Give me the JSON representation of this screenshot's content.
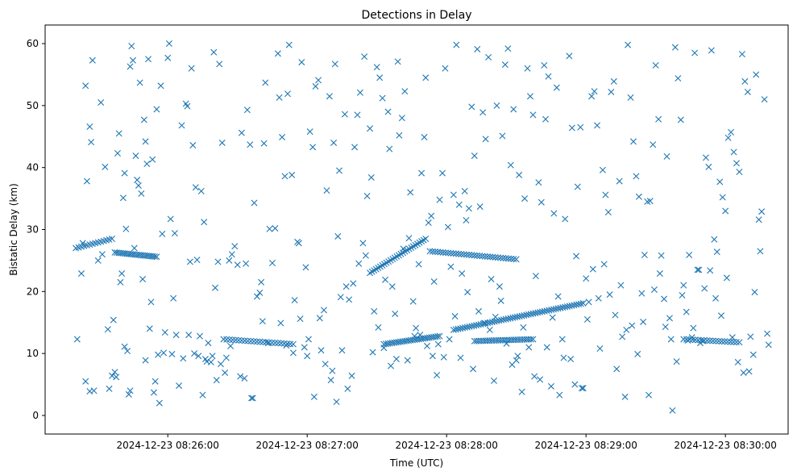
{
  "chart_data": {
    "type": "scatter",
    "title": "Detections in Delay",
    "xlabel": "Time (UTC)",
    "ylabel": "Bistatic Delay (km)",
    "x_unit": "minutes since 2024-12-23 08:25:00",
    "xlim": [
      0.12,
      5.45
    ],
    "ylim": [
      -3.0,
      63.0
    ],
    "grid": false,
    "marker": "x",
    "color": "#1f77b4",
    "xticks": [
      {
        "value": 1,
        "label": "2024-12-23 08:26:00"
      },
      {
        "value": 2,
        "label": "2024-12-23 08:27:00"
      },
      {
        "value": 3,
        "label": "2024-12-23 08:28:00"
      },
      {
        "value": 4,
        "label": "2024-12-23 08:29:00"
      },
      {
        "value": 5,
        "label": "2024-12-23 08:30:00"
      }
    ],
    "yticks": [
      {
        "value": 0,
        "label": "0"
      },
      {
        "value": 10,
        "label": "10"
      },
      {
        "value": 20,
        "label": "20"
      },
      {
        "value": 30,
        "label": "30"
      },
      {
        "value": 40,
        "label": "40"
      },
      {
        "value": 50,
        "label": "50"
      },
      {
        "value": 60,
        "label": "60"
      }
    ],
    "tracks": [
      {
        "name": "track-a",
        "x0": 0.34,
        "y0": 27.0,
        "x1": 0.6,
        "y1": 28.5,
        "n": 14
      },
      {
        "name": "track-b",
        "x0": 0.62,
        "y0": 26.3,
        "x1": 0.92,
        "y1": 25.6,
        "n": 22
      },
      {
        "name": "track-c",
        "x0": 1.4,
        "y0": 12.3,
        "x1": 1.9,
        "y1": 11.5,
        "n": 24
      },
      {
        "name": "track-d",
        "x0": 2.45,
        "y0": 23.0,
        "x1": 2.85,
        "y1": 28.5,
        "n": 28
      },
      {
        "name": "track-e",
        "x0": 2.88,
        "y0": 26.5,
        "x1": 3.5,
        "y1": 25.2,
        "n": 34
      },
      {
        "name": "track-f",
        "x0": 2.55,
        "y0": 11.5,
        "x1": 2.95,
        "y1": 12.8,
        "n": 28
      },
      {
        "name": "track-g",
        "x0": 3.05,
        "y0": 13.8,
        "x1": 3.98,
        "y1": 18.1,
        "n": 58
      },
      {
        "name": "track-h",
        "x0": 3.2,
        "y0": 12.0,
        "x1": 3.62,
        "y1": 12.3,
        "n": 28
      },
      {
        "name": "track-i",
        "x0": 4.7,
        "y0": 12.3,
        "x1": 5.1,
        "y1": 11.8,
        "n": 20
      }
    ],
    "points": [
      [
        0.35,
        12.3
      ],
      [
        0.38,
        22.9
      ],
      [
        0.41,
        5.5
      ],
      [
        0.42,
        37.8
      ],
      [
        0.41,
        53.2
      ],
      [
        0.44,
        46.6
      ],
      [
        0.45,
        44.1
      ],
      [
        0.46,
        57.3
      ],
      [
        0.44,
        3.9
      ],
      [
        0.5,
        25.0
      ],
      [
        0.52,
        50.5
      ],
      [
        0.55,
        40.1
      ],
      [
        0.58,
        4.3
      ],
      [
        0.6,
        6.4
      ],
      [
        0.62,
        7.0
      ],
      [
        0.63,
        6.2
      ],
      [
        0.64,
        42.3
      ],
      [
        0.65,
        45.5
      ],
      [
        0.66,
        21.5
      ],
      [
        0.67,
        22.9
      ],
      [
        0.68,
        35.1
      ],
      [
        0.69,
        39.1
      ],
      [
        0.7,
        30.1
      ],
      [
        0.71,
        10.4
      ],
      [
        0.72,
        3.4
      ],
      [
        0.73,
        4.0
      ],
      [
        0.73,
        56.3
      ],
      [
        0.74,
        59.6
      ],
      [
        0.75,
        57.3
      ],
      [
        0.77,
        41.9
      ],
      [
        0.78,
        38.0
      ],
      [
        0.79,
        37.1
      ],
      [
        0.8,
        53.7
      ],
      [
        0.81,
        35.8
      ],
      [
        0.82,
        22.0
      ],
      [
        0.83,
        47.7
      ],
      [
        0.84,
        44.2
      ],
      [
        0.85,
        40.6
      ],
      [
        0.86,
        57.5
      ],
      [
        0.87,
        14.0
      ],
      [
        0.88,
        18.3
      ],
      [
        0.89,
        41.3
      ],
      [
        0.9,
        3.7
      ],
      [
        0.91,
        5.5
      ],
      [
        0.92,
        49.4
      ],
      [
        0.93,
        9.8
      ],
      [
        0.94,
        2.0
      ],
      [
        0.95,
        53.2
      ],
      [
        0.96,
        29.3
      ],
      [
        0.98,
        13.4
      ],
      [
        1.0,
        57.7
      ],
      [
        1.01,
        60.0
      ],
      [
        1.02,
        31.7
      ],
      [
        1.04,
        18.9
      ],
      [
        1.05,
        29.4
      ],
      [
        1.06,
        13.0
      ],
      [
        1.08,
        4.8
      ],
      [
        1.1,
        46.8
      ],
      [
        1.11,
        9.2
      ],
      [
        1.13,
        50.3
      ],
      [
        1.14,
        49.9
      ],
      [
        1.15,
        13.0
      ],
      [
        1.17,
        56.0
      ],
      [
        1.18,
        43.6
      ],
      [
        1.2,
        36.8
      ],
      [
        1.21,
        25.1
      ],
      [
        1.22,
        9.6
      ],
      [
        1.24,
        36.2
      ],
      [
        1.25,
        3.3
      ],
      [
        1.26,
        31.2
      ],
      [
        1.28,
        8.7
      ],
      [
        1.29,
        11.7
      ],
      [
        1.31,
        8.6
      ],
      [
        1.33,
        58.6
      ],
      [
        1.34,
        20.6
      ],
      [
        1.36,
        24.8
      ],
      [
        1.37,
        56.7
      ],
      [
        1.39,
        44.0
      ],
      [
        1.41,
        6.9
      ],
      [
        1.42,
        9.3
      ],
      [
        1.44,
        25.0
      ],
      [
        1.46,
        26.0
      ],
      [
        1.48,
        27.3
      ],
      [
        1.5,
        24.3
      ],
      [
        1.53,
        45.6
      ],
      [
        1.55,
        6.0
      ],
      [
        1.57,
        49.3
      ],
      [
        1.59,
        43.7
      ],
      [
        1.61,
        2.8
      ],
      [
        1.62,
        34.3
      ],
      [
        1.64,
        19.2
      ],
      [
        1.66,
        19.8
      ],
      [
        1.67,
        21.5
      ],
      [
        1.69,
        43.9
      ],
      [
        1.7,
        53.7
      ],
      [
        1.73,
        30.1
      ],
      [
        1.75,
        24.6
      ],
      [
        1.79,
        58.4
      ],
      [
        1.8,
        51.3
      ],
      [
        1.82,
        44.9
      ],
      [
        1.84,
        38.6
      ],
      [
        1.86,
        51.9
      ],
      [
        1.87,
        59.8
      ],
      [
        1.89,
        38.8
      ],
      [
        1.91,
        18.6
      ],
      [
        1.93,
        28.0
      ],
      [
        1.94,
        27.8
      ],
      [
        1.96,
        57.0
      ],
      [
        1.98,
        11.0
      ],
      [
        1.99,
        23.9
      ],
      [
        2.01,
        12.3
      ],
      [
        2.02,
        45.8
      ],
      [
        2.04,
        43.3
      ],
      [
        2.06,
        53.1
      ],
      [
        2.08,
        54.1
      ],
      [
        2.1,
        10.5
      ],
      [
        2.12,
        17.0
      ],
      [
        2.14,
        36.3
      ],
      [
        2.16,
        51.5
      ],
      [
        2.18,
        7.2
      ],
      [
        2.19,
        44.0
      ],
      [
        2.2,
        56.7
      ],
      [
        2.22,
        28.9
      ],
      [
        2.23,
        39.5
      ],
      [
        2.25,
        10.5
      ],
      [
        2.27,
        48.6
      ],
      [
        2.28,
        20.8
      ],
      [
        2.3,
        18.7
      ],
      [
        2.32,
        6.4
      ],
      [
        2.34,
        43.3
      ],
      [
        2.36,
        48.5
      ],
      [
        2.38,
        52.1
      ],
      [
        2.4,
        27.8
      ],
      [
        2.41,
        57.9
      ],
      [
        2.43,
        35.4
      ],
      [
        2.45,
        46.3
      ],
      [
        2.46,
        38.4
      ],
      [
        2.48,
        16.8
      ],
      [
        2.5,
        56.2
      ],
      [
        2.52,
        54.5
      ],
      [
        2.54,
        51.2
      ],
      [
        2.56,
        21.9
      ],
      [
        2.58,
        49.0
      ],
      [
        2.59,
        43.0
      ],
      [
        2.61,
        20.8
      ],
      [
        2.63,
        16.4
      ],
      [
        2.65,
        57.1
      ],
      [
        2.66,
        45.2
      ],
      [
        2.68,
        48.0
      ],
      [
        2.7,
        52.3
      ],
      [
        2.72,
        8.9
      ],
      [
        2.74,
        36.0
      ],
      [
        2.76,
        18.4
      ],
      [
        2.78,
        14.1
      ],
      [
        2.8,
        24.4
      ],
      [
        2.82,
        39.1
      ],
      [
        2.84,
        44.9
      ],
      [
        2.85,
        54.5
      ],
      [
        2.87,
        31.1
      ],
      [
        2.89,
        32.2
      ],
      [
        2.91,
        21.6
      ],
      [
        2.93,
        6.5
      ],
      [
        2.95,
        34.8
      ],
      [
        2.97,
        39.1
      ],
      [
        2.99,
        56.0
      ],
      [
        3.01,
        30.4
      ],
      [
        3.03,
        24.0
      ],
      [
        3.05,
        35.6
      ],
      [
        3.07,
        59.8
      ],
      [
        3.09,
        34.0
      ],
      [
        3.11,
        22.9
      ],
      [
        3.13,
        36.2
      ],
      [
        3.14,
        31.5
      ],
      [
        3.16,
        33.4
      ],
      [
        3.18,
        49.8
      ],
      [
        3.2,
        41.9
      ],
      [
        3.22,
        59.1
      ],
      [
        3.24,
        33.7
      ],
      [
        3.26,
        48.9
      ],
      [
        3.28,
        44.6
      ],
      [
        3.3,
        57.8
      ],
      [
        3.32,
        22.0
      ],
      [
        3.34,
        5.6
      ],
      [
        3.36,
        50.0
      ],
      [
        3.38,
        20.8
      ],
      [
        3.4,
        45.1
      ],
      [
        3.42,
        56.6
      ],
      [
        3.44,
        59.2
      ],
      [
        3.46,
        40.4
      ],
      [
        3.48,
        49.4
      ],
      [
        3.5,
        8.9
      ],
      [
        3.52,
        38.8
      ],
      [
        3.54,
        3.8
      ],
      [
        3.56,
        35.0
      ],
      [
        3.58,
        56.0
      ],
      [
        3.6,
        51.5
      ],
      [
        3.62,
        48.5
      ],
      [
        3.64,
        22.5
      ],
      [
        3.66,
        37.6
      ],
      [
        3.68,
        34.4
      ],
      [
        3.7,
        56.5
      ],
      [
        3.71,
        47.8
      ],
      [
        3.73,
        54.7
      ],
      [
        3.75,
        4.7
      ],
      [
        3.77,
        32.6
      ],
      [
        3.79,
        52.9
      ],
      [
        3.81,
        3.3
      ],
      [
        3.83,
        12.3
      ],
      [
        3.85,
        31.7
      ],
      [
        3.88,
        58.0
      ],
      [
        3.9,
        46.4
      ],
      [
        3.92,
        5.0
      ],
      [
        3.94,
        36.9
      ],
      [
        3.96,
        46.5
      ],
      [
        3.98,
        4.4
      ],
      [
        4.0,
        22.1
      ],
      [
        4.02,
        18.3
      ],
      [
        4.04,
        51.5
      ],
      [
        4.06,
        52.3
      ],
      [
        4.08,
        46.8
      ],
      [
        4.1,
        10.8
      ],
      [
        4.12,
        39.6
      ],
      [
        4.14,
        35.6
      ],
      [
        4.16,
        32.8
      ],
      [
        4.18,
        52.2
      ],
      [
        4.2,
        53.9
      ],
      [
        4.22,
        7.5
      ],
      [
        4.24,
        37.8
      ],
      [
        4.26,
        12.7
      ],
      [
        4.28,
        3.0
      ],
      [
        4.3,
        59.8
      ],
      [
        4.32,
        51.3
      ],
      [
        4.34,
        44.2
      ],
      [
        4.36,
        38.6
      ],
      [
        4.38,
        35.3
      ],
      [
        4.4,
        19.7
      ],
      [
        4.42,
        25.9
      ],
      [
        4.44,
        34.5
      ],
      [
        4.46,
        34.6
      ],
      [
        4.48,
        43.7
      ],
      [
        4.5,
        56.5
      ],
      [
        4.52,
        47.8
      ],
      [
        4.54,
        25.8
      ],
      [
        4.56,
        18.8
      ],
      [
        4.58,
        41.8
      ],
      [
        4.6,
        15.7
      ],
      [
        4.62,
        0.8
      ],
      [
        4.64,
        59.4
      ],
      [
        4.66,
        54.4
      ],
      [
        4.68,
        47.7
      ],
      [
        4.7,
        21.0
      ],
      [
        4.72,
        16.7
      ],
      [
        4.74,
        25.9
      ],
      [
        4.76,
        12.6
      ],
      [
        4.78,
        58.5
      ],
      [
        4.8,
        23.5
      ],
      [
        4.82,
        11.7
      ],
      [
        4.84,
        12.0
      ],
      [
        4.86,
        41.6
      ],
      [
        4.88,
        40.1
      ],
      [
        4.9,
        58.9
      ],
      [
        4.92,
        28.4
      ],
      [
        4.94,
        26.4
      ],
      [
        4.96,
        37.7
      ],
      [
        4.98,
        35.2
      ],
      [
        5.0,
        33.0
      ],
      [
        5.02,
        44.8
      ],
      [
        5.04,
        45.7
      ],
      [
        5.06,
        42.5
      ],
      [
        5.08,
        40.7
      ],
      [
        5.1,
        39.3
      ],
      [
        5.12,
        58.3
      ],
      [
        5.14,
        53.9
      ],
      [
        5.16,
        52.2
      ],
      [
        5.18,
        12.7
      ],
      [
        5.2,
        9.8
      ],
      [
        5.22,
        55.0
      ],
      [
        5.24,
        31.6
      ],
      [
        5.26,
        32.9
      ],
      [
        5.28,
        51.0
      ],
      [
        5.3,
        13.2
      ],
      [
        5.31,
        11.4
      ],
      [
        0.39,
        27.8
      ],
      [
        0.47,
        4.0
      ],
      [
        0.53,
        26.0
      ],
      [
        0.57,
        13.9
      ],
      [
        0.61,
        15.4
      ],
      [
        0.69,
        11.1
      ],
      [
        0.76,
        27.0
      ],
      [
        0.84,
        8.9
      ],
      [
        0.97,
        10.1
      ],
      [
        1.03,
        9.9
      ],
      [
        1.16,
        24.8
      ],
      [
        1.19,
        10.0
      ],
      [
        1.23,
        12.8
      ],
      [
        1.27,
        9.1
      ],
      [
        1.32,
        9.6
      ],
      [
        1.35,
        5.7
      ],
      [
        1.38,
        8.3
      ],
      [
        1.45,
        11.2
      ],
      [
        1.52,
        6.3
      ],
      [
        1.56,
        24.5
      ],
      [
        1.6,
        2.8
      ],
      [
        1.68,
        15.2
      ],
      [
        1.72,
        11.7
      ],
      [
        1.77,
        30.2
      ],
      [
        1.81,
        14.9
      ],
      [
        1.85,
        11.3
      ],
      [
        1.9,
        10.1
      ],
      [
        1.95,
        15.6
      ],
      [
        2.0,
        9.6
      ],
      [
        2.05,
        3.0
      ],
      [
        2.09,
        15.7
      ],
      [
        2.13,
        8.3
      ],
      [
        2.17,
        5.7
      ],
      [
        2.21,
        2.2
      ],
      [
        2.24,
        19.1
      ],
      [
        2.29,
        4.3
      ],
      [
        2.33,
        21.3
      ],
      [
        2.37,
        24.5
      ],
      [
        2.42,
        25.8
      ],
      [
        2.47,
        10.2
      ],
      [
        2.51,
        14.2
      ],
      [
        2.55,
        10.9
      ],
      [
        2.6,
        8.0
      ],
      [
        2.64,
        9.1
      ],
      [
        2.69,
        26.9
      ],
      [
        2.73,
        28.6
      ],
      [
        2.77,
        12.8
      ],
      [
        2.81,
        13.0
      ],
      [
        2.86,
        11.2
      ],
      [
        2.9,
        9.6
      ],
      [
        2.94,
        11.5
      ],
      [
        2.98,
        9.4
      ],
      [
        3.02,
        12.3
      ],
      [
        3.06,
        16.0
      ],
      [
        3.1,
        9.3
      ],
      [
        3.15,
        19.9
      ],
      [
        3.19,
        7.5
      ],
      [
        3.23,
        16.8
      ],
      [
        3.27,
        14.9
      ],
      [
        3.31,
        13.8
      ],
      [
        3.35,
        15.9
      ],
      [
        3.39,
        18.5
      ],
      [
        3.43,
        11.6
      ],
      [
        3.47,
        8.2
      ],
      [
        3.51,
        9.6
      ],
      [
        3.55,
        14.2
      ],
      [
        3.59,
        11.0
      ],
      [
        3.63,
        6.3
      ],
      [
        3.67,
        5.8
      ],
      [
        3.72,
        11.0
      ],
      [
        3.76,
        15.8
      ],
      [
        3.8,
        19.2
      ],
      [
        3.84,
        9.3
      ],
      [
        3.89,
        9.1
      ],
      [
        3.93,
        25.7
      ],
      [
        3.97,
        4.4
      ],
      [
        4.01,
        15.5
      ],
      [
        4.05,
        23.6
      ],
      [
        4.09,
        18.9
      ],
      [
        4.13,
        24.4
      ],
      [
        4.17,
        19.5
      ],
      [
        4.21,
        16.2
      ],
      [
        4.25,
        21.0
      ],
      [
        4.29,
        13.8
      ],
      [
        4.33,
        14.5
      ],
      [
        4.37,
        9.9
      ],
      [
        4.41,
        15.1
      ],
      [
        4.45,
        3.3
      ],
      [
        4.49,
        20.3
      ],
      [
        4.53,
        22.9
      ],
      [
        4.57,
        14.3
      ],
      [
        4.61,
        12.3
      ],
      [
        4.65,
        8.7
      ],
      [
        4.69,
        19.4
      ],
      [
        4.73,
        12.1
      ],
      [
        4.77,
        14.1
      ],
      [
        4.81,
        23.5
      ],
      [
        4.85,
        20.5
      ],
      [
        4.89,
        23.4
      ],
      [
        4.93,
        18.9
      ],
      [
        4.97,
        16.1
      ],
      [
        5.01,
        22.2
      ],
      [
        5.05,
        12.6
      ],
      [
        5.09,
        8.6
      ],
      [
        5.13,
        6.9
      ],
      [
        5.17,
        7.1
      ],
      [
        5.21,
        19.9
      ],
      [
        5.25,
        26.5
      ]
    ]
  }
}
